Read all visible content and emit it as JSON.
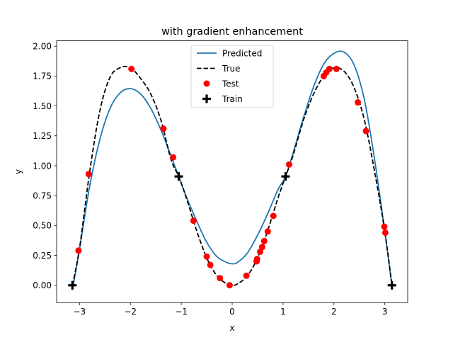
{
  "chart_data": {
    "type": "line",
    "title": "with gradient enhancement",
    "xlabel": "x",
    "ylabel": "y",
    "xlim": [
      -3.45,
      3.45
    ],
    "ylim": [
      -0.145,
      2.045
    ],
    "xticks": [
      -3,
      -2,
      -1,
      0,
      1,
      2,
      3
    ],
    "xtick_labels": [
      "−3",
      "−2",
      "−1",
      "0",
      "1",
      "2",
      "3"
    ],
    "yticks": [
      0.0,
      0.25,
      0.5,
      0.75,
      1.0,
      1.25,
      1.5,
      1.75,
      2.0
    ],
    "ytick_labels": [
      "0.00",
      "0.25",
      "0.50",
      "0.75",
      "1.00",
      "1.25",
      "1.50",
      "1.75",
      "2.00"
    ],
    "grid": false,
    "legend_position": "top-center",
    "series": [
      {
        "name": "Predicted",
        "kind": "line",
        "color": "#1f77b4",
        "x": [
          -3.14,
          -3.0,
          -2.8,
          -2.6,
          -2.4,
          -2.2,
          -2.0,
          -1.8,
          -1.6,
          -1.4,
          -1.2,
          -1.05,
          -0.9,
          -0.7,
          -0.5,
          -0.3,
          -0.1,
          0.0,
          0.1,
          0.3,
          0.5,
          0.7,
          0.9,
          1.05,
          1.2,
          1.4,
          1.6,
          1.8,
          2.0,
          2.2,
          2.4,
          2.6,
          2.8,
          3.0,
          3.14
        ],
        "y": [
          -0.04,
          0.3,
          0.83,
          1.22,
          1.48,
          1.61,
          1.645,
          1.6,
          1.48,
          1.3,
          1.08,
          0.91,
          0.74,
          0.54,
          0.36,
          0.24,
          0.19,
          0.18,
          0.19,
          0.27,
          0.42,
          0.6,
          0.8,
          0.91,
          1.11,
          1.4,
          1.66,
          1.85,
          1.94,
          1.95,
          1.84,
          1.55,
          1.05,
          0.45,
          0.0
        ]
      },
      {
        "name": "True",
        "kind": "dashed",
        "color": "#000000",
        "x": [
          -3.14,
          -3.0,
          -2.8,
          -2.6,
          -2.4,
          -2.2,
          -2.0,
          -1.8,
          -1.6,
          -1.4,
          -1.2,
          -1.05,
          -0.9,
          -0.7,
          -0.5,
          -0.3,
          -0.1,
          0.0,
          0.1,
          0.3,
          0.5,
          0.7,
          0.9,
          1.05,
          1.2,
          1.4,
          1.6,
          1.8,
          2.0,
          2.2,
          2.4,
          2.6,
          2.8,
          3.0,
          3.14
        ],
        "y": [
          0.0,
          0.31,
          0.95,
          1.46,
          1.74,
          1.82,
          1.82,
          1.73,
          1.6,
          1.38,
          1.05,
          0.91,
          0.73,
          0.46,
          0.23,
          0.08,
          0.01,
          0.0,
          0.01,
          0.08,
          0.23,
          0.46,
          0.73,
          0.91,
          1.09,
          1.38,
          1.6,
          1.75,
          1.82,
          1.79,
          1.65,
          1.38,
          0.95,
          0.45,
          0.0
        ]
      },
      {
        "name": "Test",
        "kind": "scatter",
        "color": "#ff0000",
        "x": [
          -3.02,
          -2.82,
          -1.98,
          -1.35,
          -1.16,
          -0.76,
          -0.5,
          -0.43,
          -0.24,
          -0.05,
          0.28,
          0.48,
          0.49,
          0.55,
          0.59,
          0.63,
          0.7,
          0.81,
          1.12,
          1.8,
          1.85,
          1.91,
          2.05,
          2.47,
          2.63,
          2.99,
          3.01
        ],
        "y": [
          0.29,
          0.93,
          1.81,
          1.31,
          1.07,
          0.54,
          0.24,
          0.17,
          0.06,
          0.0,
          0.08,
          0.2,
          0.22,
          0.28,
          0.32,
          0.37,
          0.45,
          0.58,
          1.01,
          1.75,
          1.78,
          1.81,
          1.81,
          1.53,
          1.29,
          0.49,
          0.44
        ]
      },
      {
        "name": "Train",
        "kind": "plus",
        "color": "#000000",
        "x": [
          -3.14,
          -1.05,
          1.05,
          3.14
        ],
        "y": [
          0.0,
          0.91,
          0.91,
          0.0
        ]
      }
    ]
  }
}
